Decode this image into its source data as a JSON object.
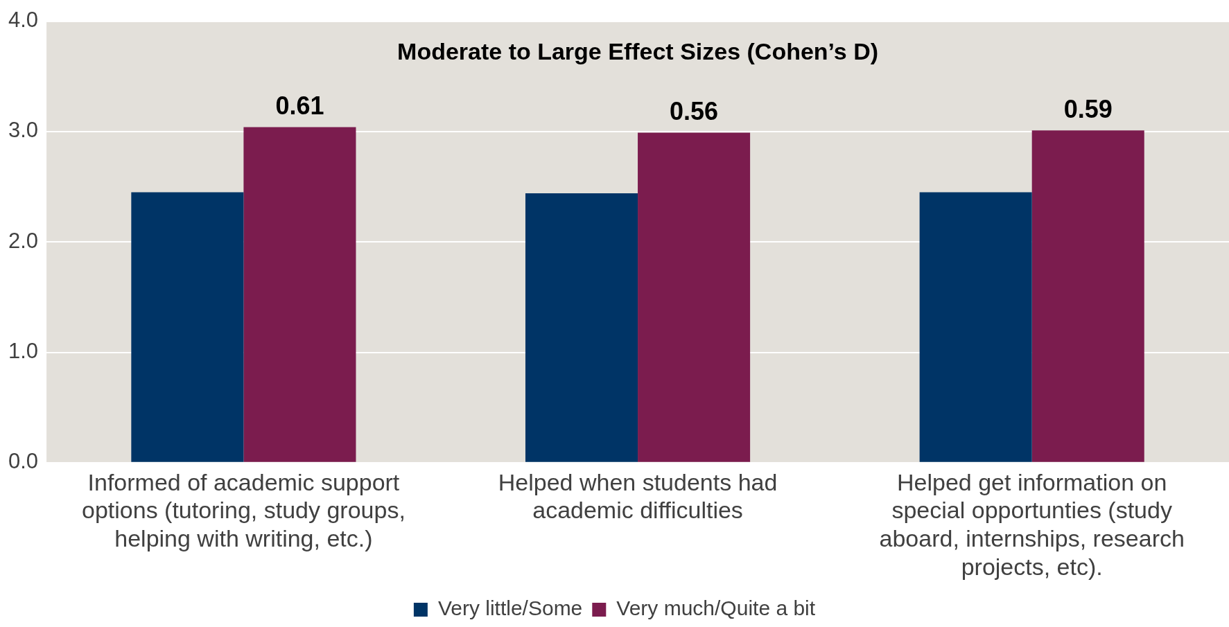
{
  "chart_data": {
    "type": "bar",
    "title": "Moderate to Large Effect Sizes (Cohen’s D)",
    "categories": [
      "Informed of academic support options (tutoring, study groups, helping with writing, etc.)",
      "Helped when students had academic difficulties",
      "Helped get information on special opportunties (study aboard, internships, research projects, etc)."
    ],
    "series": [
      {
        "name": "Very little/Some",
        "color": "#003466",
        "values": [
          2.45,
          2.44,
          2.45
        ]
      },
      {
        "name": "Very much/Quite a bit",
        "color": "#7b1c4e",
        "values": [
          3.04,
          2.99,
          3.01
        ]
      }
    ],
    "ylim": [
      0,
      4
    ],
    "yticks": [
      {
        "value": 0,
        "label": "0.0"
      },
      {
        "value": 1,
        "label": "1.0"
      },
      {
        "value": 2,
        "label": "2.0"
      },
      {
        "value": 3,
        "label": "3.0"
      },
      {
        "value": 4,
        "label": "4.0"
      }
    ],
    "grid": "y",
    "legend": "bottom",
    "annotations": [
      {
        "text": "0.61",
        "x": "Informed of academic support options (tutoring, study groups, helping with writing, etc.)",
        "y": 3.04
      },
      {
        "text": "0.56",
        "x": "Helped when students had academic difficulties",
        "y": 2.99
      },
      {
        "text": "0.59",
        "x": "Helped get information on special opportunties (study aboard, internships, research projects, etc).",
        "y": 3.01
      }
    ]
  }
}
